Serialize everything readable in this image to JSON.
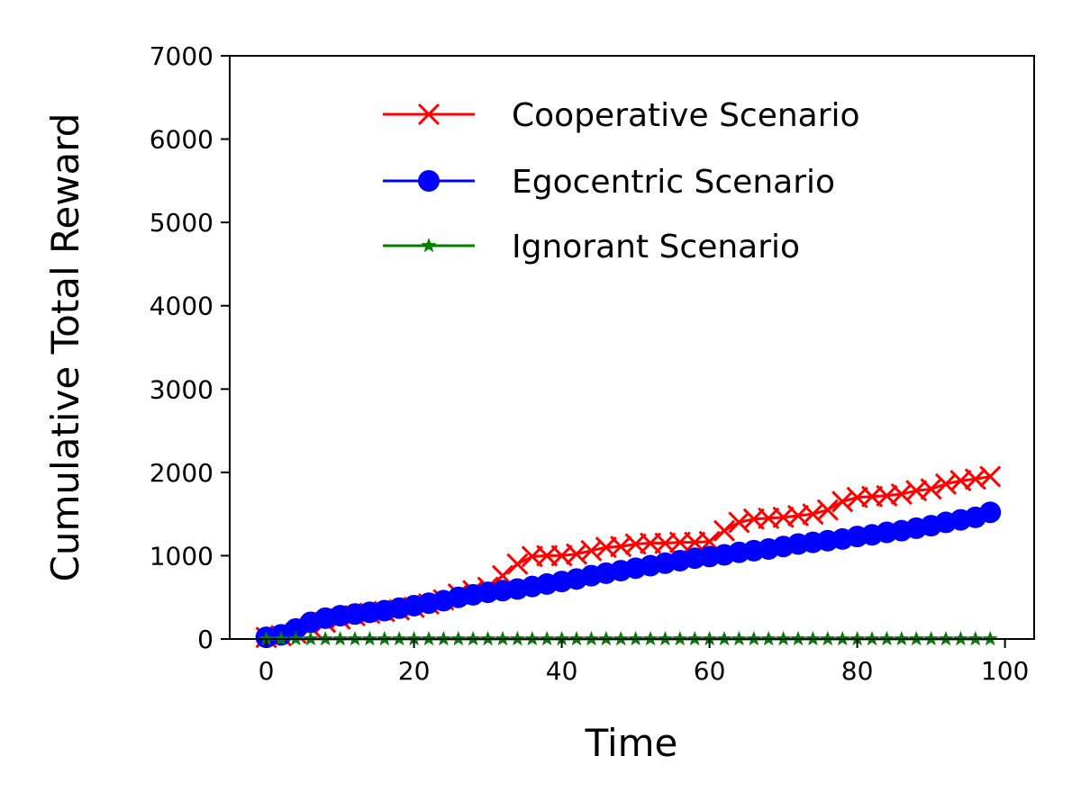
{
  "chart_data": {
    "type": "line",
    "title": "",
    "xlabel": "Time",
    "ylabel": "Cumulative Total Reward",
    "xlim": [
      -4.95,
      103.95
    ],
    "ylim": [
      0,
      7000
    ],
    "xticks": [
      0,
      20,
      40,
      60,
      80,
      100
    ],
    "yticks": [
      0,
      1000,
      2000,
      3000,
      4000,
      5000,
      6000,
      7000
    ],
    "grid": false,
    "legend_position": "top-right",
    "x": [
      0,
      2,
      4,
      6,
      8,
      10,
      12,
      14,
      16,
      18,
      20,
      22,
      24,
      26,
      28,
      30,
      32,
      34,
      36,
      38,
      40,
      42,
      44,
      46,
      48,
      50,
      52,
      54,
      56,
      58,
      60,
      62,
      64,
      66,
      68,
      70,
      72,
      74,
      76,
      78,
      80,
      82,
      84,
      86,
      88,
      90,
      92,
      94,
      96,
      98
    ],
    "series": [
      {
        "name": "Cooperative Scenario",
        "color": "#ff0000",
        "marker": "x",
        "values": [
          20,
          40,
          70,
          140,
          200,
          240,
          280,
          310,
          330,
          350,
          380,
          420,
          470,
          540,
          580,
          620,
          760,
          900,
          990,
          1000,
          1000,
          1020,
          1060,
          1100,
          1110,
          1140,
          1150,
          1150,
          1160,
          1160,
          1170,
          1300,
          1400,
          1440,
          1450,
          1460,
          1480,
          1500,
          1550,
          1650,
          1700,
          1710,
          1720,
          1740,
          1780,
          1800,
          1860,
          1900,
          1920,
          1950
        ]
      },
      {
        "name": "Egocentric Scenario",
        "color": "#0000ff",
        "marker": "o",
        "values": [
          20,
          50,
          120,
          200,
          250,
          280,
          300,
          320,
          340,
          370,
          400,
          430,
          460,
          500,
          530,
          560,
          580,
          600,
          630,
          660,
          690,
          720,
          760,
          790,
          820,
          850,
          880,
          910,
          940,
          970,
          990,
          1010,
          1040,
          1060,
          1080,
          1110,
          1140,
          1160,
          1180,
          1200,
          1230,
          1250,
          1280,
          1300,
          1330,
          1360,
          1400,
          1430,
          1460,
          1520
        ]
      },
      {
        "name": "Ignorant Scenario",
        "color": "#008000",
        "marker": "*",
        "values": [
          0,
          0,
          0,
          0,
          0,
          0,
          0,
          0,
          0,
          0,
          0,
          0,
          0,
          0,
          0,
          0,
          0,
          0,
          0,
          0,
          0,
          0,
          0,
          0,
          0,
          0,
          0,
          0,
          0,
          0,
          0,
          0,
          0,
          0,
          0,
          0,
          0,
          0,
          0,
          0,
          0,
          0,
          0,
          0,
          0,
          0,
          0,
          0,
          0,
          0
        ]
      }
    ]
  }
}
